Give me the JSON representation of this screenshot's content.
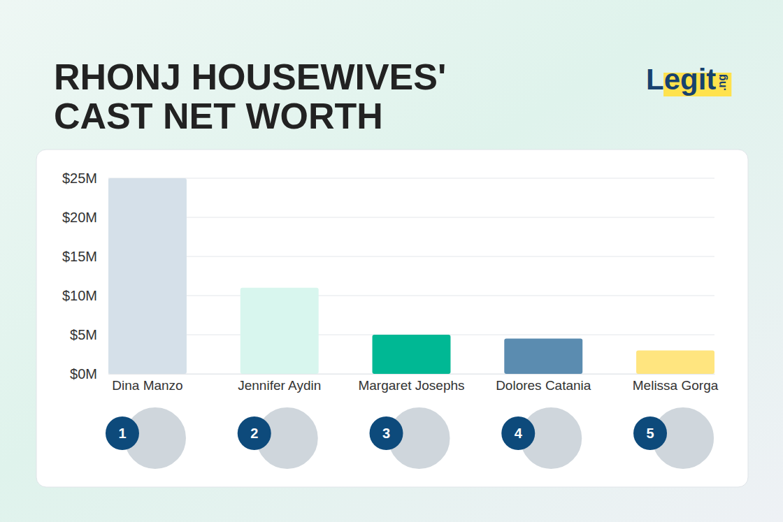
{
  "chart_data": {
    "type": "bar",
    "title": "RHONJ HOUSEWIVES' CAST NET WORTH",
    "logo": "Legit.ng",
    "categories": [
      "Dina Manzo",
      "Jennifer Aydin",
      "Margaret Josephs",
      "Dolores Catania",
      "Melissa Gorga"
    ],
    "values": [
      25,
      11,
      5,
      4.5,
      3
    ],
    "colors": [
      "#d5e0e9",
      "#d8f6ee",
      "#00b894",
      "#5b8cb0",
      "#ffe57f"
    ],
    "ranks": [
      1,
      2,
      3,
      4,
      5
    ],
    "ylim": [
      0,
      25
    ],
    "yticks": [
      {
        "value": 0,
        "label": "$0M"
      },
      {
        "value": 5,
        "label": "$5M"
      },
      {
        "value": 10,
        "label": "$10M"
      },
      {
        "value": 15,
        "label": "$15M"
      },
      {
        "value": 20,
        "label": "$20M"
      },
      {
        "value": 25,
        "label": "$25M"
      }
    ],
    "grid": true
  }
}
